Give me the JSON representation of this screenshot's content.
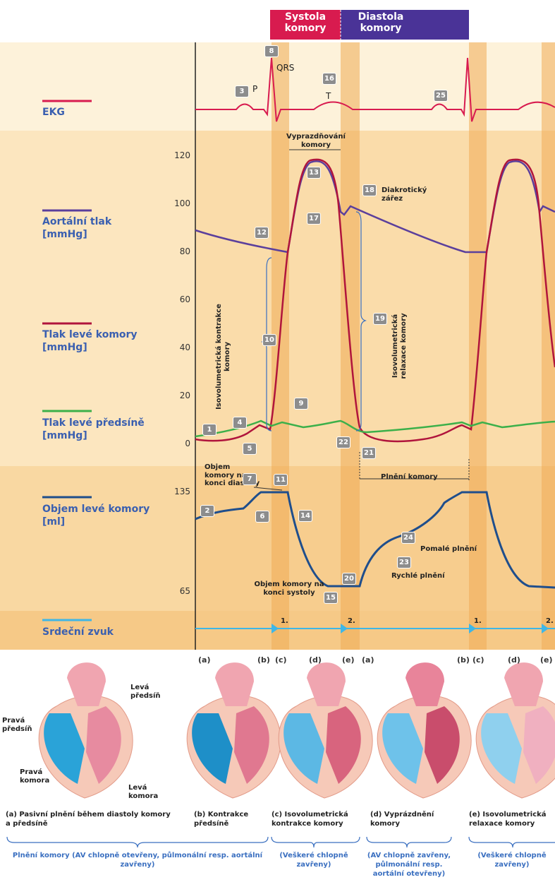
{
  "header": {
    "systole": "Systola komory",
    "diastole": "Diastola komory"
  },
  "row_labels": {
    "ekg": "EKG",
    "aortic": "Aortální tlak [mmHg]",
    "ventricle": "Tlak levé komory [mmHg]",
    "atrium": "Tlak levé předsíně [mmHg]",
    "volume": "Objem levé komory [ml]",
    "sound": "Srdeční zvuk"
  },
  "pressure_ticks": [
    120,
    100,
    80,
    60,
    40,
    20,
    0
  ],
  "volume_ticks": [
    135,
    65
  ],
  "markers": [
    1,
    2,
    3,
    4,
    5,
    6,
    7,
    8,
    9,
    10,
    11,
    12,
    13,
    14,
    15,
    16,
    17,
    18,
    19,
    20,
    21,
    22,
    23,
    24,
    25
  ],
  "annotations": {
    "p": "P",
    "qrs": "QRS",
    "t": "T",
    "ejection": "Vyprazdňování komory",
    "dicrotic": "Diakrotický zářez",
    "iso_contraction": "Isovolumetrická kontrakce komory",
    "iso_relaxation": "Isovolumetrická relaxace komory",
    "edv": "Objem komory na konci diastoly",
    "filling": "Plnění komory",
    "slow_filling": "Pomalé plnění",
    "rapid_filling": "Rychlé plnění",
    "esv": "Objem komory na konci systoly"
  },
  "heart_sounds": [
    "1.",
    "2.",
    "1.",
    "2."
  ],
  "phases": [
    "(a)",
    "(b)",
    "(c)",
    "(d)",
    "(e)",
    "(a)",
    "(b)",
    "(c)",
    "(d)",
    "(e)"
  ],
  "heart_labels": {
    "left_atrium": "Levá předsíň",
    "right_atrium": "Pravá předsíň",
    "right_ventricle": "Pravá komora",
    "left_ventricle": "Levá komora"
  },
  "captions": [
    "(a) Pasivní plnění během diastoly komory a předsíně",
    "(b) Kontrakce předsíně",
    "(c) Isovolumetrická kontrakce komory",
    "(d) Vyprázdnění komory",
    "(e) Isovolumetrická relaxace komory"
  ],
  "valve_states": [
    "Plnění komory (AV chlopně otevřeny, půlmonální resp. aortální zavřeny)",
    "(Veškeré chlopně zavřeny)",
    "(AV chlopně zavřeny, půlmonální resp. aortální otevřeny)",
    "(Veškeré chlopně zavřeny)"
  ]
}
